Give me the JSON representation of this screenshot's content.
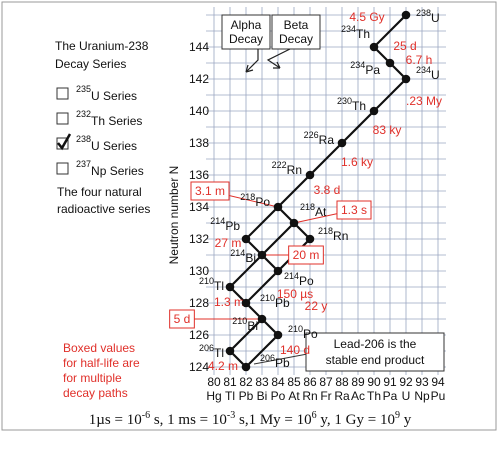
{
  "panel": {
    "title_lines": [
      "The Uranium-238",
      "Decay Series"
    ],
    "series": [
      {
        "mass": "235",
        "label": "U Series",
        "checked": false
      },
      {
        "mass": "232",
        "label": "Th Series",
        "checked": false
      },
      {
        "mass": "238",
        "label": "U Series",
        "checked": true
      },
      {
        "mass": "237",
        "label": "Np Series",
        "checked": false
      }
    ],
    "caption_lines": [
      "The four natural",
      "radioactive series"
    ]
  },
  "note_lines": [
    "Boxed values",
    "for half-life are",
    "for multiple",
    "decay paths"
  ],
  "legend": {
    "alpha": [
      "Alpha",
      "Decay"
    ],
    "beta": [
      "Beta",
      "Decay"
    ]
  },
  "callout_lines": [
    "Lead-206 is the",
    "stable end product"
  ],
  "axis": {
    "y_label": "Neutron number N",
    "xlim": [
      79.5,
      94.5
    ],
    "ylim": [
      123.5,
      146.5
    ],
    "yticks": [
      124,
      126,
      128,
      130,
      132,
      134,
      136,
      138,
      140,
      142,
      144
    ],
    "xticks": [
      80,
      81,
      82,
      83,
      84,
      85,
      86,
      87,
      88,
      89,
      90,
      91,
      92,
      93,
      94
    ],
    "x_symbols": [
      "Hg",
      "Tl",
      "Pb",
      "Bi",
      "Po",
      "At",
      "Rn",
      "Fr",
      "Ra",
      "Ac",
      "Th",
      "Pa",
      "U",
      "Np",
      "Pu"
    ]
  },
  "nodes": [
    {
      "mass": "238",
      "symbol": "U",
      "z": 92,
      "n": 146,
      "half_life": "4.5 Gy",
      "boxed": false
    },
    {
      "mass": "234",
      "symbol": "Th",
      "z": 90,
      "n": 144,
      "half_life": "25 d",
      "boxed": false
    },
    {
      "mass": "234",
      "symbol": "Pa",
      "z": 91,
      "n": 143,
      "half_life": "6.7 h",
      "boxed": false
    },
    {
      "mass": "234",
      "symbol": "U",
      "z": 92,
      "n": 142,
      "half_life": ".23 My",
      "boxed": false
    },
    {
      "mass": "230",
      "symbol": "Th",
      "z": 90,
      "n": 140,
      "half_life": "83 ky",
      "boxed": false
    },
    {
      "mass": "226",
      "symbol": "Ra",
      "z": 88,
      "n": 138,
      "half_life": "1.6 ky",
      "boxed": false
    },
    {
      "mass": "222",
      "symbol": "Rn",
      "z": 86,
      "n": 136,
      "half_life": "3.8 d",
      "boxed": false
    },
    {
      "mass": "218",
      "symbol": "Po",
      "z": 84,
      "n": 134,
      "half_life": "3.1 m",
      "boxed": true
    },
    {
      "mass": "218",
      "symbol": "At",
      "z": 85,
      "n": 133,
      "half_life": "1.3 s",
      "boxed": true
    },
    {
      "mass": "214",
      "symbol": "Pb",
      "z": 82,
      "n": 132,
      "half_life": "27 m",
      "boxed": false
    },
    {
      "mass": "218",
      "symbol": "Rn",
      "z": 86,
      "n": 132
    },
    {
      "mass": "214",
      "symbol": "Bi",
      "z": 83,
      "n": 131,
      "half_life": "20 m",
      "boxed": true
    },
    {
      "mass": "214",
      "symbol": "Po",
      "z": 84,
      "n": 130,
      "half_life": "150 µs",
      "boxed": false
    },
    {
      "mass": "210",
      "symbol": "Tl",
      "z": 81,
      "n": 129,
      "half_life": "1.3 m",
      "boxed": false
    },
    {
      "mass": "210",
      "symbol": "Pb",
      "z": 82,
      "n": 128,
      "half_life": "22 y",
      "boxed": false
    },
    {
      "mass": "210",
      "symbol": "Bi",
      "z": 83,
      "n": 127,
      "half_life": "5 d",
      "boxed": true
    },
    {
      "mass": "210",
      "symbol": "Po",
      "z": 84,
      "n": 126,
      "half_life": "140 d",
      "boxed": false
    },
    {
      "mass": "206",
      "symbol": "Tl",
      "z": 81,
      "n": 125,
      "half_life": "4.2 m",
      "boxed": false
    },
    {
      "mass": "206",
      "symbol": "Pb",
      "z": 82,
      "n": 124
    }
  ],
  "footnote": [
    "1µs = 10",
    "-6",
    " s, 1 ms = 10",
    "-3",
    " s,1 My = 10",
    "6",
    " y, 1 Gy = 10",
    "9",
    " y"
  ]
}
